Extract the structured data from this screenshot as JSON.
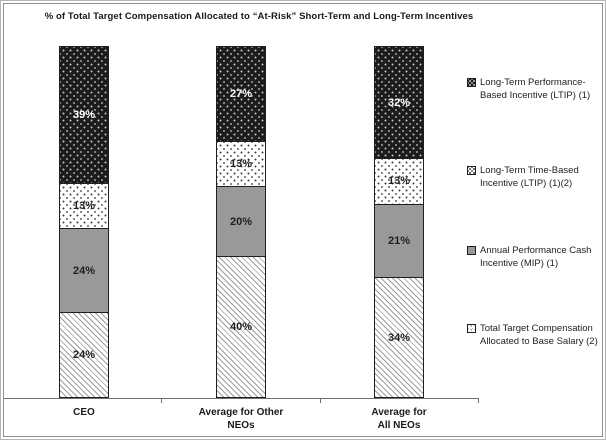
{
  "chart_data": {
    "type": "bar",
    "stacked": true,
    "title": "% of Total Target Compensation Allocated to “At-Risk” Short-Term and Long-Term Incentives",
    "value_suffix": "%",
    "ylim": [
      0,
      100
    ],
    "gridlines": false,
    "y_axis_visible": false,
    "legend_position": "right",
    "categories": [
      "CEO",
      "Average for Other NEOs",
      "Average for All NEOs"
    ],
    "category_label_lines": [
      [
        "CEO"
      ],
      [
        "Average for Other",
        "NEOs"
      ],
      [
        "Average for",
        "All NEOs"
      ]
    ],
    "series": [
      {
        "name": "Total Target Compensation Allocated to Base Salary (2)",
        "legend_lines": [
          "Total Target Compensation",
          "Allocated to Base Salary (2)"
        ],
        "pattern": "diagonal-hatch",
        "fill_color": "#ffffff",
        "pattern_color": "#9c9c9c",
        "values": [
          24,
          40,
          34
        ]
      },
      {
        "name": "Annual Performance Cash Incentive (MIP) (1)",
        "legend_lines": [
          "Annual Performance Cash",
          "Incentive (MIP) (1)"
        ],
        "pattern": "solid",
        "fill_color": "#999999",
        "values": [
          24,
          20,
          21
        ]
      },
      {
        "name": "Long-Term Time-Based Incentive (LTIP) (1)(2)",
        "legend_lines": [
          "Long-Term Time-Based",
          "Incentive (LTIP) (1)(2)"
        ],
        "pattern": "dots-on-white",
        "fill_color": "#ffffff",
        "pattern_color": "#3a3a3a",
        "values": [
          13,
          13,
          13
        ]
      },
      {
        "name": "Long-Term Performance-Based Incentive (LTIP) (1)",
        "legend_lines": [
          "Long-Term Performance-",
          "Based Incentive (LTIP) (1)"
        ],
        "pattern": "dots-on-black",
        "fill_color": "#1c1c1c",
        "pattern_color": "#c9c9c9",
        "value_label_color": "#ffffff",
        "values": [
          39,
          27,
          32
        ]
      }
    ]
  }
}
